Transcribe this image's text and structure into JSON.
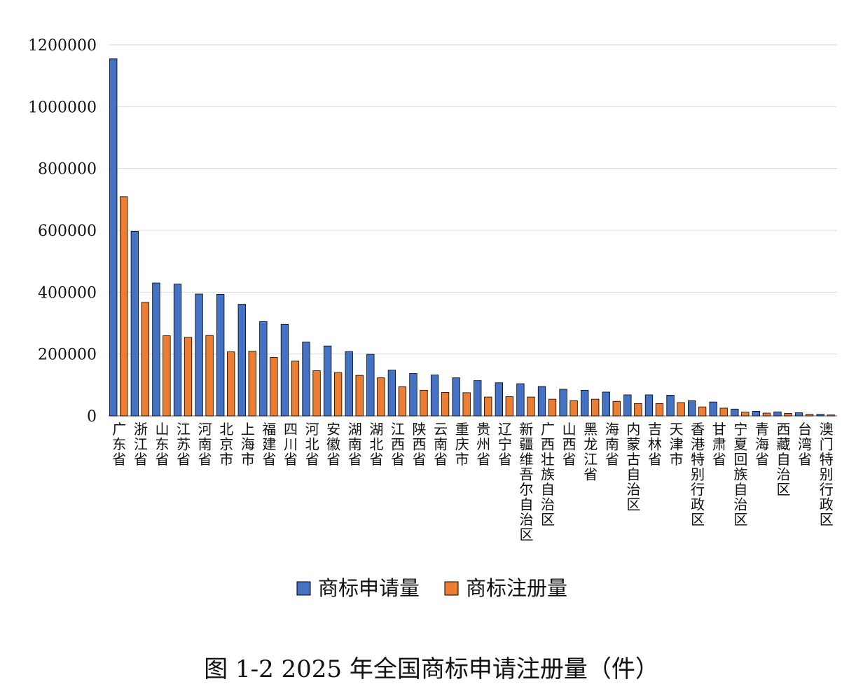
{
  "chart_data": {
    "type": "bar",
    "caption": "图 1-2 2025 年全国商标申请注册量（件）",
    "categories": [
      "广东省",
      "浙江省",
      "山东省",
      "江苏省",
      "河南省",
      "北京市",
      "上海市",
      "福建省",
      "四川省",
      "河北省",
      "安徽省",
      "湖南省",
      "湖北省",
      "江西省",
      "陕西省",
      "云南省",
      "重庆市",
      "贵州省",
      "辽宁省",
      "新疆维吾尔自治区",
      "广西壮族自治区",
      "山西省",
      "黑龙江省",
      "海南省",
      "内蒙古自治区",
      "吉林省",
      "天津市",
      "香港特别行政区",
      "甘肃省",
      "宁夏回族自治区",
      "青海省",
      "西藏自治区",
      "台湾省",
      "澳门特别行政区"
    ],
    "series": [
      {
        "name": "商标申请量",
        "color": "#4472C4",
        "values": [
          1155000,
          597000,
          430000,
          426000,
          394000,
          393000,
          361000,
          305000,
          296000,
          239000,
          226000,
          208000,
          199000,
          148000,
          137000,
          132000,
          123000,
          114000,
          107000,
          104000,
          95000,
          86000,
          83000,
          77000,
          68000,
          68000,
          67000,
          49000,
          45000,
          22000,
          15000,
          13000,
          10000,
          5000
        ]
      },
      {
        "name": "商标注册量",
        "color": "#ED7D31",
        "values": [
          709000,
          367000,
          259000,
          254000,
          260000,
          207000,
          209000,
          189000,
          177000,
          146000,
          140000,
          131000,
          123000,
          94000,
          83000,
          76000,
          75000,
          61000,
          62000,
          61000,
          54000,
          49000,
          54000,
          47000,
          40000,
          40000,
          43000,
          29000,
          25000,
          12000,
          9000,
          8000,
          5000,
          3000
        ]
      }
    ],
    "yticks": [
      "0",
      "200000",
      "400000",
      "600000",
      "800000",
      "1000000",
      "1200000"
    ],
    "ylim": [
      0,
      1200000
    ],
    "grid": true,
    "legend_position": "bottom-center"
  },
  "colors": {
    "gridline": "#d9d9d9",
    "axis": "#808080",
    "bar_stroke": "#000000"
  }
}
